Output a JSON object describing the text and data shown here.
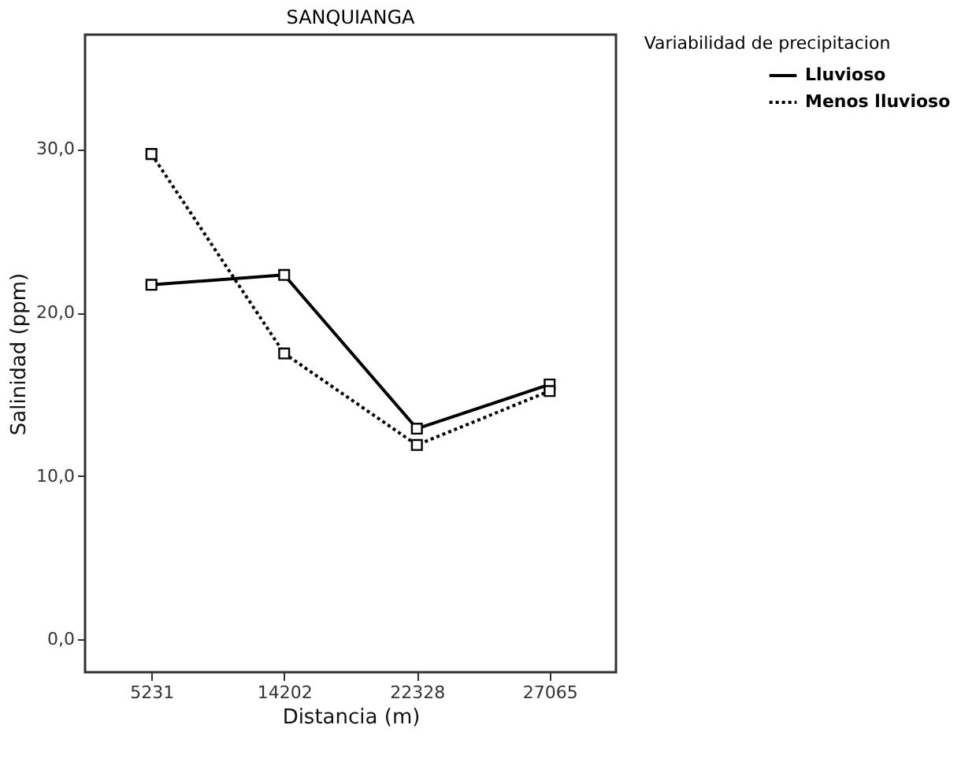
{
  "chart_data": {
    "type": "line",
    "title": "SANQUIANGA",
    "xlabel": "Distancia (m)",
    "ylabel": "Salinidad (ppm)",
    "legend_title": "Variabilidad de precipitacion",
    "categories": [
      "5231",
      "14202",
      "22328",
      "27065"
    ],
    "series": [
      {
        "name": "Lluvioso",
        "color": "#000000",
        "line_style": "solid",
        "values": [
          21.7,
          22.3,
          12.9,
          15.6
        ]
      },
      {
        "name": "Menos lluvioso",
        "color": "#000000",
        "line_style": "dotted",
        "values": [
          29.7,
          17.5,
          11.9,
          15.2
        ]
      }
    ],
    "ylim": [
      -2,
      37
    ],
    "yticks": [
      {
        "value": 0,
        "label": "0,0"
      },
      {
        "value": 10,
        "label": "10,0"
      },
      {
        "value": 20,
        "label": "20,0"
      },
      {
        "value": 30,
        "label": "30,0"
      }
    ],
    "grid": false,
    "legend": "right",
    "marker": "square"
  }
}
